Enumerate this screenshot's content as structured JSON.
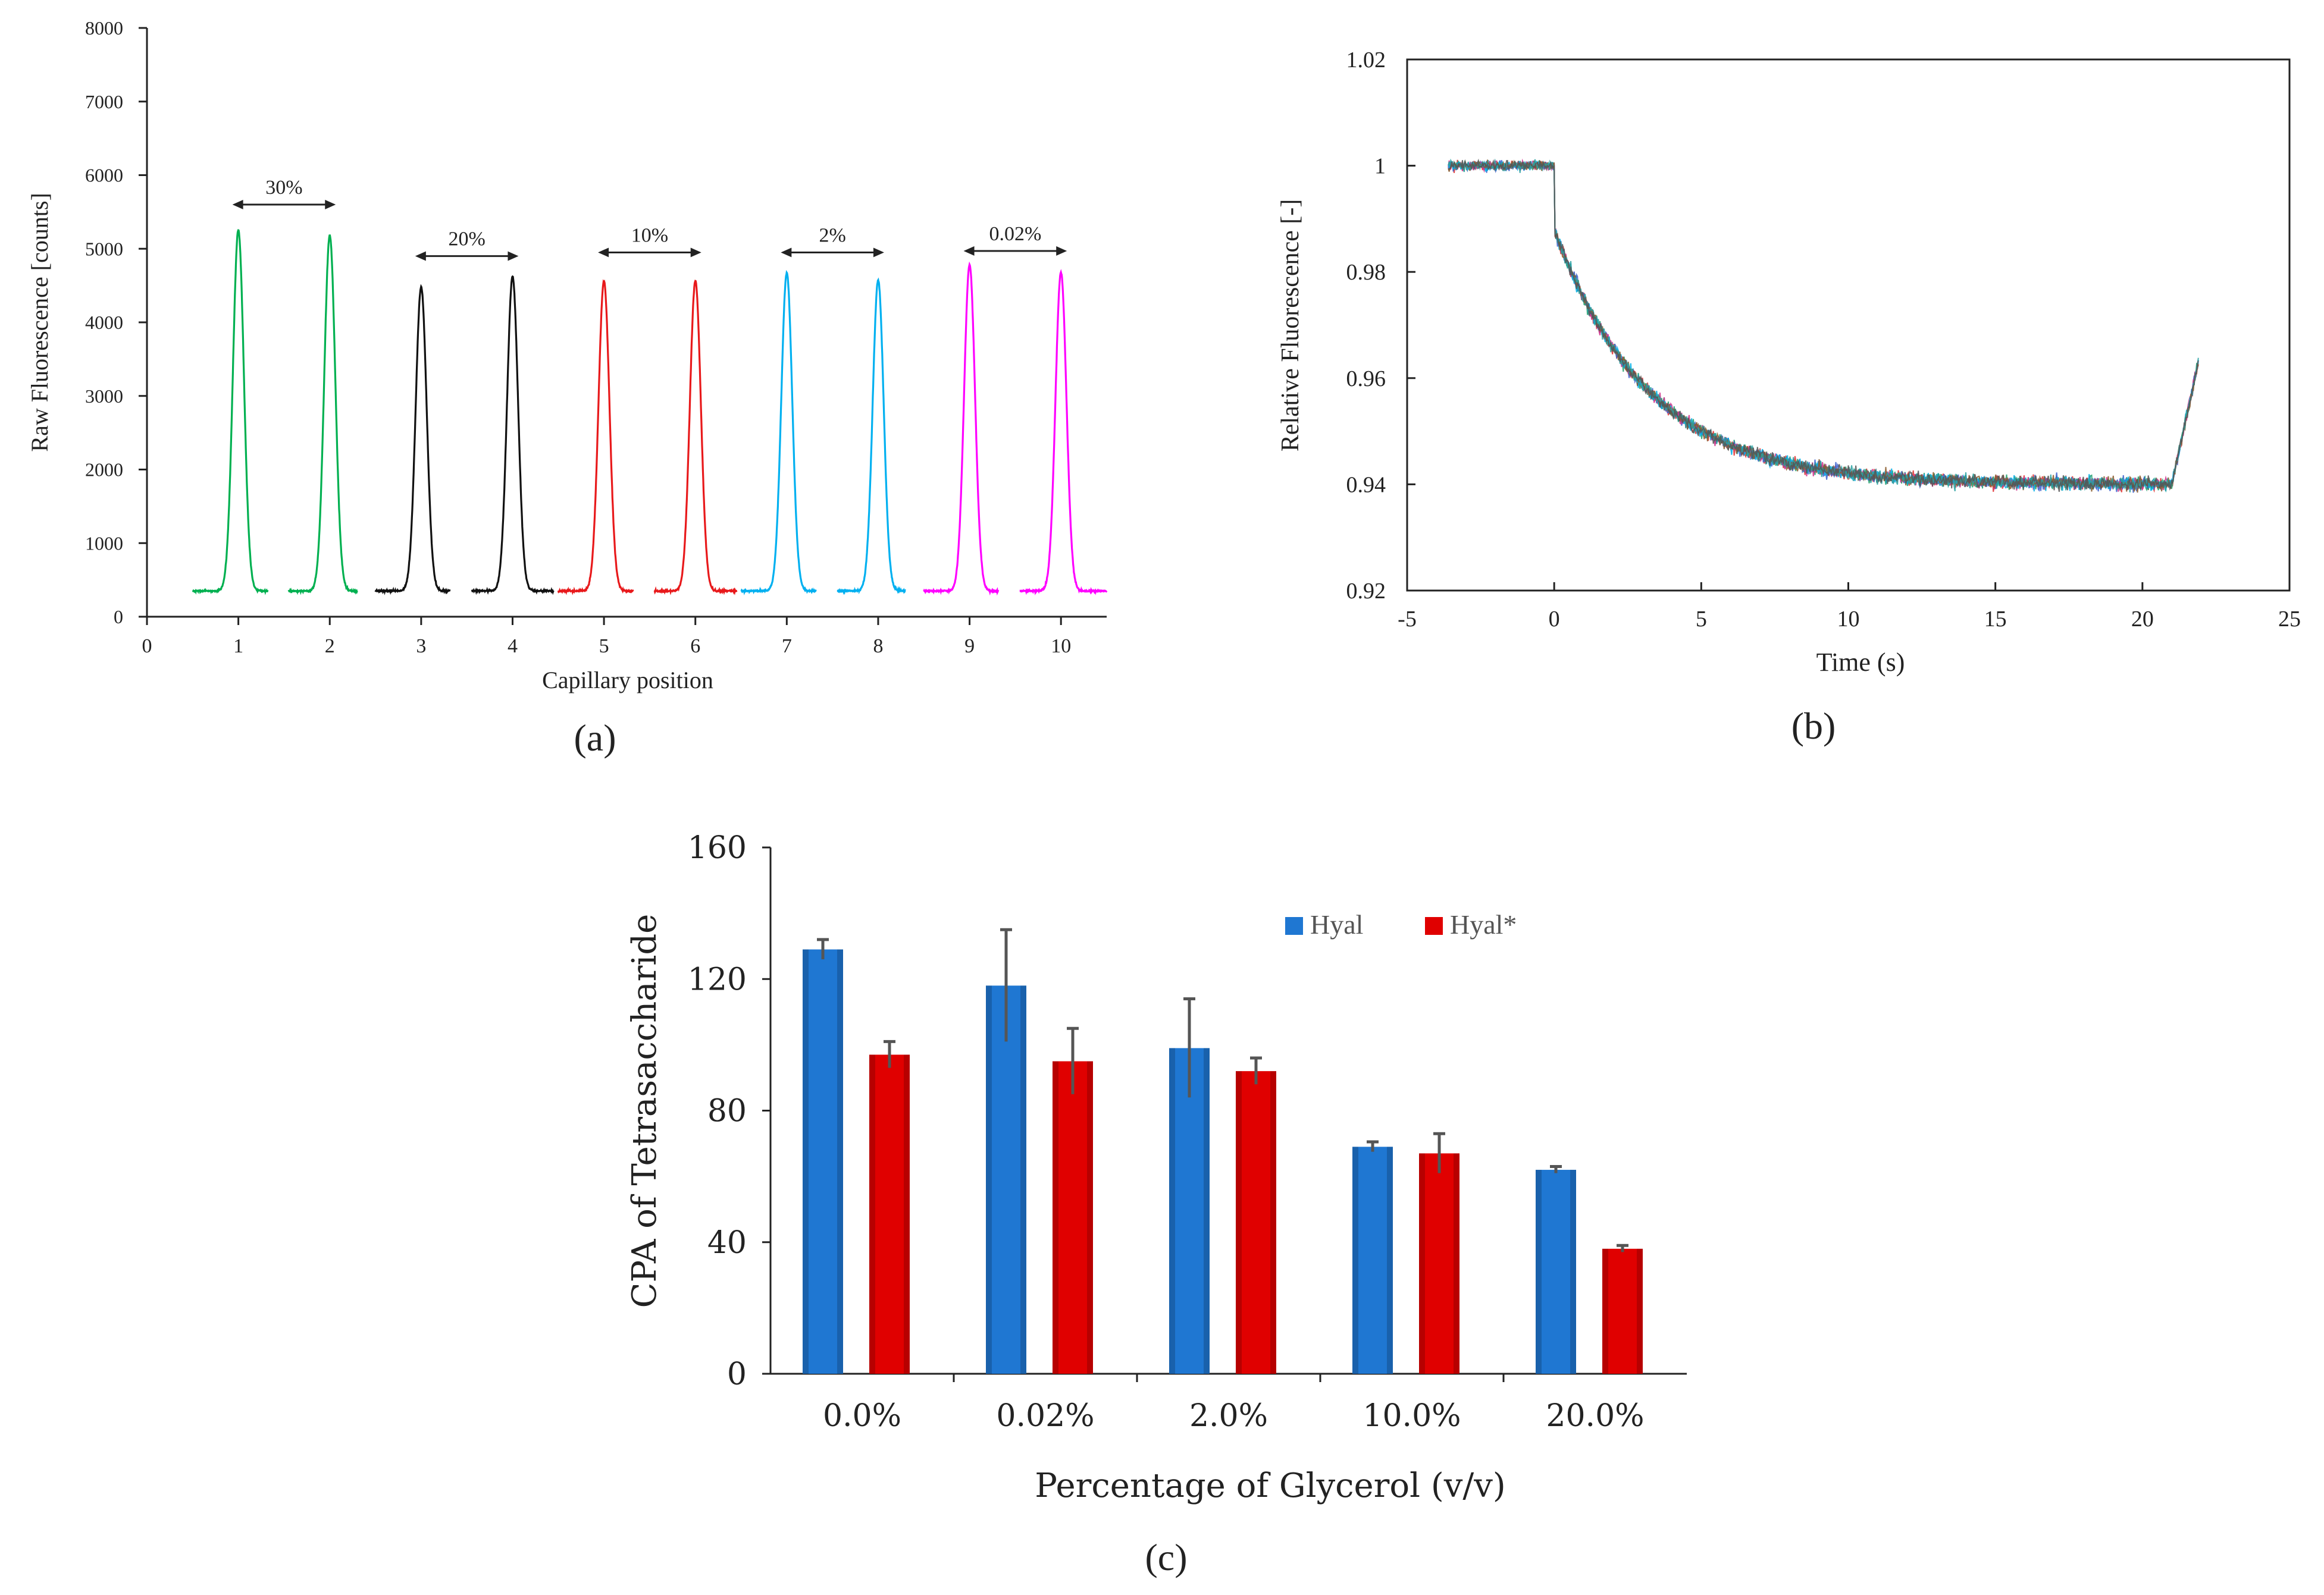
{
  "figure": {
    "panel_labels": [
      "(a)",
      "(b)",
      "(c)"
    ]
  },
  "chart_data": [
    {
      "type": "line",
      "xlabel": "Capillary position",
      "ylabel": "Raw Fluorescence [counts]",
      "xlim": [
        0,
        10.5
      ],
      "ylim": [
        0,
        8000
      ],
      "xticks": [
        "0",
        "1",
        "2",
        "3",
        "4",
        "5",
        "6",
        "7",
        "8",
        "9",
        "10"
      ],
      "yticks": [
        "0",
        "1000",
        "2000",
        "3000",
        "4000",
        "5000",
        "6000",
        "7000",
        "8000"
      ],
      "baseline": 350,
      "series": [
        {
          "color": "#00b050",
          "x_range": [
            0.5,
            2.3
          ],
          "peaks": [
            {
              "x": 1,
              "y": 5250
            },
            {
              "x": 2,
              "y": 5180
            }
          ]
        },
        {
          "color": "#111111",
          "x_range": [
            2.5,
            4.45
          ],
          "peaks": [
            {
              "x": 3,
              "y": 4480
            },
            {
              "x": 4,
              "y": 4620
            }
          ]
        },
        {
          "color": "#e8191b",
          "x_range": [
            4.5,
            6.45
          ],
          "peaks": [
            {
              "x": 5,
              "y": 4560
            },
            {
              "x": 6,
              "y": 4560
            }
          ]
        },
        {
          "color": "#00b0f0",
          "x_range": [
            6.5,
            8.3
          ],
          "peaks": [
            {
              "x": 7,
              "y": 4670
            },
            {
              "x": 8,
              "y": 4570
            }
          ]
        },
        {
          "color": "#ff00ff",
          "x_range": [
            8.5,
            10.5
          ],
          "peaks": [
            {
              "x": 9,
              "y": 4780
            },
            {
              "x": 10,
              "y": 4680
            }
          ]
        }
      ],
      "annotations": [
        {
          "label": "30%",
          "x": [
            1,
            2
          ],
          "y": 5600
        },
        {
          "label": "20%",
          "x": [
            3,
            4
          ],
          "y": 4900
        },
        {
          "label": "10%",
          "x": [
            5,
            6
          ],
          "y": 4950
        },
        {
          "label": "2%",
          "x": [
            7,
            8
          ],
          "y": 4950
        },
        {
          "label": "0.02%",
          "x": [
            9,
            10
          ],
          "y": 4970
        }
      ]
    },
    {
      "type": "line",
      "xlabel": "Time (s)",
      "ylabel": "Relative Fluorescence [-]",
      "xlim": [
        -5,
        25
      ],
      "ylim": [
        0.92,
        1.02
      ],
      "xticks": [
        "-5",
        "0",
        "5",
        "10",
        "15",
        "20",
        "25"
      ],
      "yticks": [
        "0.92",
        "0.94",
        "0.96",
        "0.98",
        "1",
        "1.02"
      ],
      "description_values": {
        "pre_level": 1.0,
        "plateau": 0.94,
        "drop_time": 0,
        "tau": 3.2,
        "recovery_start": 21,
        "recovery_end": 21.9,
        "recovery_level": 0.963
      },
      "series": [
        {
          "color": "#e03030"
        },
        {
          "color": "#1a9e6a"
        },
        {
          "color": "#3a5fcd"
        },
        {
          "color": "#d0308c"
        },
        {
          "color": "#00b0e8"
        },
        {
          "color": "#8a5a2a"
        },
        {
          "color": "#28a0a0"
        },
        {
          "color": "#555555"
        }
      ]
    },
    {
      "type": "bar",
      "xlabel": "Percentage of Glycerol (v/v)",
      "ylabel": "CPA of Tetrasaccharide",
      "ylim": [
        0,
        160
      ],
      "yticks": [
        "0",
        "40",
        "80",
        "120",
        "160"
      ],
      "categories": [
        "0.0%",
        "0.02%",
        "2.0%",
        "10.0%",
        "20.0%"
      ],
      "series": [
        {
          "name": "Hyal",
          "color": "#1f77d2",
          "values": [
            129,
            118,
            99,
            69,
            62
          ],
          "errors": [
            3,
            17,
            15,
            1.5,
            1
          ]
        },
        {
          "name": "Hyal*",
          "color": "#e00000",
          "values": [
            97,
            95,
            92,
            67,
            38
          ],
          "errors": [
            4,
            10,
            4,
            6,
            1
          ]
        }
      ]
    }
  ]
}
